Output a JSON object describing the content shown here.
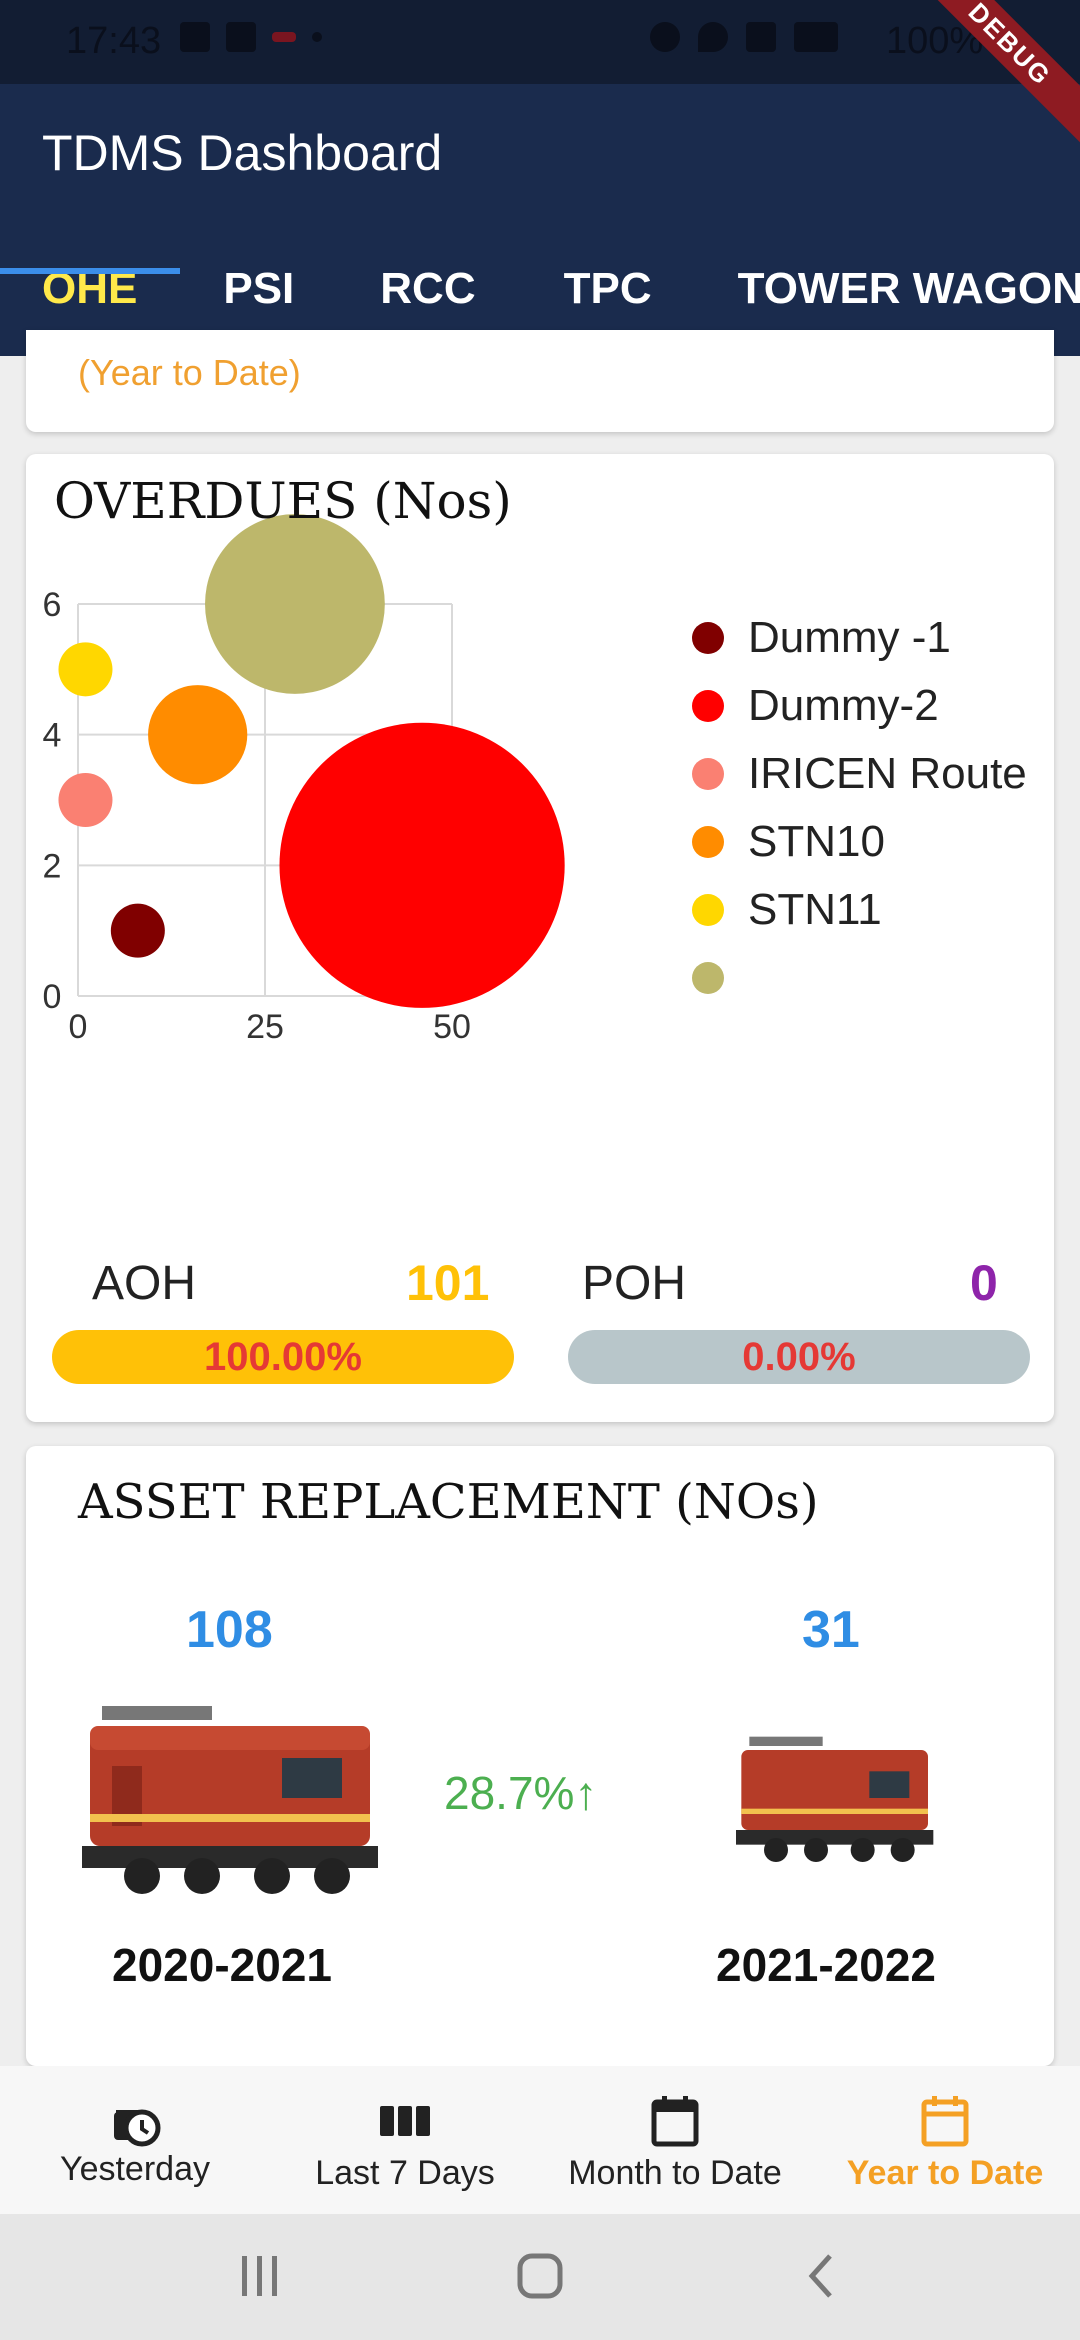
{
  "status_bar": {
    "time": "17:43",
    "battery": "100%",
    "debug_label": "DEBUG"
  },
  "app": {
    "title": "TDMS Dashboard"
  },
  "tabs": [
    {
      "label": "OHE",
      "active": true
    },
    {
      "label": "PSI"
    },
    {
      "label": "RCC"
    },
    {
      "label": "TPC"
    },
    {
      "label": "TOWER WAGON"
    }
  ],
  "top_card": {
    "subtitle": "(Year to Date)"
  },
  "overdues": {
    "title": "OVERDUES (Nos)",
    "legend": [
      {
        "name": "Dummy -1",
        "color": "#800000"
      },
      {
        "name": "Dummy-2",
        "color": "#ff0000"
      },
      {
        "name": "IRICEN Route",
        "color": "#fa8072"
      },
      {
        "name": "STN10",
        "color": "#ff8c00"
      },
      {
        "name": "STN11",
        "color": "#ffd700"
      },
      {
        "name": "",
        "color": "#bdb76b"
      }
    ],
    "aoh": {
      "label": "AOH",
      "value": "101",
      "percent_label": "100.00%",
      "percent": 100,
      "color": "#ffc107"
    },
    "poh": {
      "label": "POH",
      "value": "0",
      "percent_label": "0.00%",
      "percent": 0,
      "color": "#b0bec5"
    }
  },
  "chart_data": {
    "type": "scatter",
    "title": "OVERDUES (Nos)",
    "xlim": [
      0,
      50
    ],
    "ylim": [
      0,
      6
    ],
    "x_ticks": [
      "0",
      "25",
      "50"
    ],
    "y_ticks": [
      "0",
      "2",
      "4",
      "6"
    ],
    "grid": true,
    "legend_position": "right",
    "series": [
      {
        "name": "Dummy -1",
        "color": "#800000",
        "x": 8,
        "y": 1,
        "size": 8
      },
      {
        "name": "Dummy-2",
        "color": "#ff0000",
        "x": 46,
        "y": 2,
        "size": 46
      },
      {
        "name": "IRICEN Route",
        "color": "#fa8072",
        "x": 1,
        "y": 3,
        "size": 3
      },
      {
        "name": "STN10",
        "color": "#ff8c00",
        "x": 16,
        "y": 4,
        "size": 16
      },
      {
        "name": "STN11",
        "color": "#ffd700",
        "x": 1,
        "y": 5,
        "size": 3
      },
      {
        "color": "#bdb76b",
        "x": 29,
        "y": 6,
        "size": 29
      }
    ]
  },
  "asset_replacement": {
    "title": "ASSET REPLACEMENT (NOs)",
    "left": {
      "count": "108",
      "year": "2020-2021"
    },
    "right": {
      "count": "31",
      "year": "2021-2022"
    },
    "change": "28.7%↑"
  },
  "bottom_nav": [
    {
      "label": "Yesterday",
      "icon": "history-icon"
    },
    {
      "label": "Last 7 Days",
      "icon": "week-icon"
    },
    {
      "label": "Month to Date",
      "icon": "calendar-icon"
    },
    {
      "label": "Year to Date",
      "icon": "calendar-outline-icon",
      "active": true
    }
  ]
}
